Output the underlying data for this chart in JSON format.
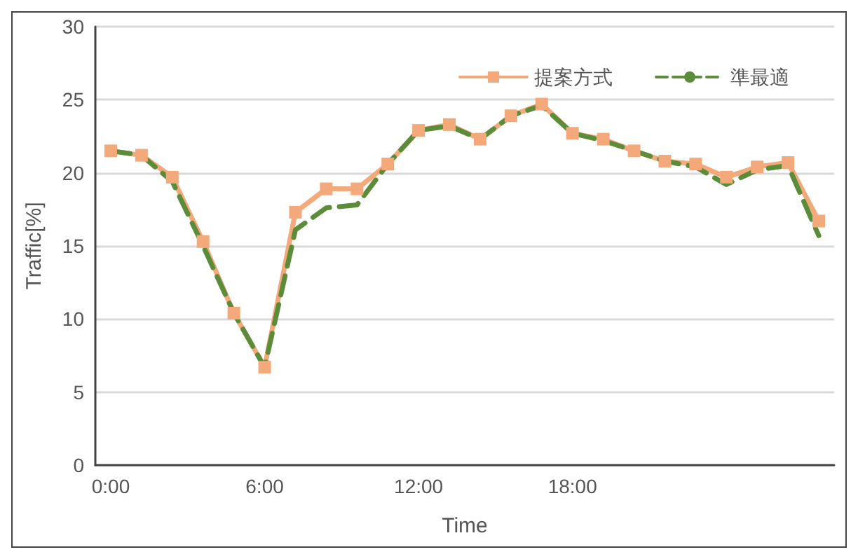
{
  "chart_data": {
    "type": "line",
    "xlabel": "Time",
    "ylabel": "Traffic[%]",
    "categories": [
      "0:00",
      null,
      null,
      null,
      null,
      "6:00",
      null,
      null,
      null,
      null,
      "12:00",
      null,
      null,
      null,
      null,
      "18:00",
      null,
      null,
      null,
      null,
      null,
      null,
      null,
      null
    ],
    "series": [
      {
        "name": "提案方式",
        "color": "#f4a97a",
        "marker": "square",
        "line_style": "solid",
        "values": [
          21.5,
          21.2,
          19.7,
          15.3,
          10.4,
          6.7,
          17.3,
          18.9,
          18.9,
          20.6,
          22.9,
          23.3,
          22.3,
          23.9,
          24.7,
          22.7,
          22.3,
          21.5,
          20.8,
          20.6,
          19.7,
          20.4,
          20.7,
          16.7
        ]
      },
      {
        "name": "準最適",
        "color": "#5b8c3a",
        "marker": "none",
        "line_style": "dashed",
        "values": [
          21.5,
          21.2,
          19.4,
          15.0,
          10.4,
          6.7,
          16.1,
          17.6,
          17.8,
          20.6,
          22.9,
          23.2,
          22.3,
          23.9,
          24.6,
          22.7,
          22.2,
          21.5,
          20.8,
          20.4,
          19.2,
          20.2,
          20.5,
          15.7
        ]
      }
    ],
    "ylim": [
      0,
      30
    ],
    "yticks": [
      0,
      5,
      10,
      15,
      20,
      25,
      30
    ],
    "grid": "y",
    "legend": "top right"
  }
}
